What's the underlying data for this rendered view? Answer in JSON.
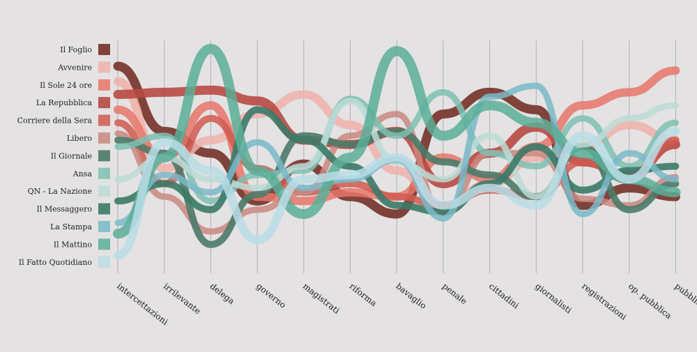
{
  "chart_data": {
    "type": "line",
    "title": "",
    "xlabel": "",
    "ylabel": "",
    "grid": true,
    "legend_placement": "left",
    "categories": [
      "intercettazioni",
      "irrilevante",
      "delega",
      "governo",
      "magistrati",
      "riforma",
      "bavaglio",
      "penale",
      "cittadini",
      "giornalisti",
      "registrazioni",
      "op. pubblica",
      "pubblicazione"
    ],
    "series": [
      {
        "name": "Il Foglio",
        "color": "#7a3a32",
        "width": 13,
        "opacity": 0.95,
        "values": [
          92,
          62,
          52,
          30,
          47,
          32,
          24,
          70,
          80,
          72,
          28,
          36,
          32
        ]
      },
      {
        "name": "Avvenire",
        "color": "#f0b0aa",
        "width": 12,
        "opacity": 0.85,
        "values": [
          85,
          45,
          58,
          70,
          79,
          65,
          44,
          27,
          38,
          50,
          55,
          65,
          58
        ]
      },
      {
        "name": "Il Sole 24 ore",
        "color": "#e8756a",
        "width": 12,
        "opacity": 0.85,
        "values": [
          72,
          50,
          74,
          32,
          30,
          34,
          32,
          50,
          40,
          55,
          74,
          80,
          90
        ]
      },
      {
        "name": "La Repubblica",
        "color": "#b84a44",
        "width": 13,
        "opacity": 0.9,
        "values": [
          79,
          80,
          81,
          76,
          58,
          56,
          62,
          38,
          52,
          64,
          48,
          42,
          56
        ]
      },
      {
        "name": "Corriere della Sera",
        "color": "#d05a50",
        "width": 10,
        "opacity": 0.85,
        "values": [
          66,
          38,
          68,
          45,
          34,
          38,
          32,
          28,
          35,
          32,
          48,
          40,
          58
        ]
      },
      {
        "name": "Libero",
        "color": "#c98880",
        "width": 9,
        "opacity": 0.85,
        "values": [
          61,
          32,
          16,
          26,
          34,
          60,
          70,
          25,
          52,
          52,
          31,
          28,
          41
        ]
      },
      {
        "name": "Il Giornale",
        "color": "#4d7a68",
        "width": 10,
        "opacity": 0.9,
        "values": [
          58,
          52,
          10,
          33,
          60,
          56,
          62,
          48,
          42,
          32,
          55,
          26,
          38
        ]
      },
      {
        "name": "Ansa",
        "color": "#7ec0b2",
        "width": 9,
        "opacity": 0.85,
        "values": [
          55,
          60,
          30,
          42,
          44,
          77,
          60,
          80,
          52,
          46,
          68,
          46,
          66
        ]
      },
      {
        "name": "QN - La Nazione",
        "color": "#bcdcd6",
        "width": 9,
        "opacity": 0.85,
        "values": [
          40,
          50,
          40,
          36,
          46,
          76,
          48,
          40,
          60,
          32,
          56,
          68,
          74
        ]
      },
      {
        "name": "Il Messaggero",
        "color": "#3b7a68",
        "width": 10,
        "opacity": 0.9,
        "values": [
          30,
          38,
          26,
          72,
          58,
          46,
          28,
          25,
          38,
          55,
          35,
          44,
          46
        ]
      },
      {
        "name": "La Stampa",
        "color": "#7ab8c8",
        "width": 9,
        "opacity": 0.85,
        "values": [
          20,
          42,
          34,
          57,
          36,
          40,
          49,
          22,
          78,
          83,
          24,
          52,
          40
        ]
      },
      {
        "name": "Il Mattino",
        "color": "#5aae98",
        "width": 14,
        "opacity": 0.85,
        "values": [
          15,
          50,
          100,
          44,
          24,
          50,
          99,
          60,
          74,
          66,
          52,
          40,
          34
        ]
      },
      {
        "name": "Il Fatto Quotidiano",
        "color": "#b8dde6",
        "width": 12,
        "opacity": 0.85,
        "values": [
          5,
          57,
          44,
          12,
          40,
          42,
          50,
          28,
          36,
          28,
          60,
          40,
          62
        ]
      }
    ]
  }
}
